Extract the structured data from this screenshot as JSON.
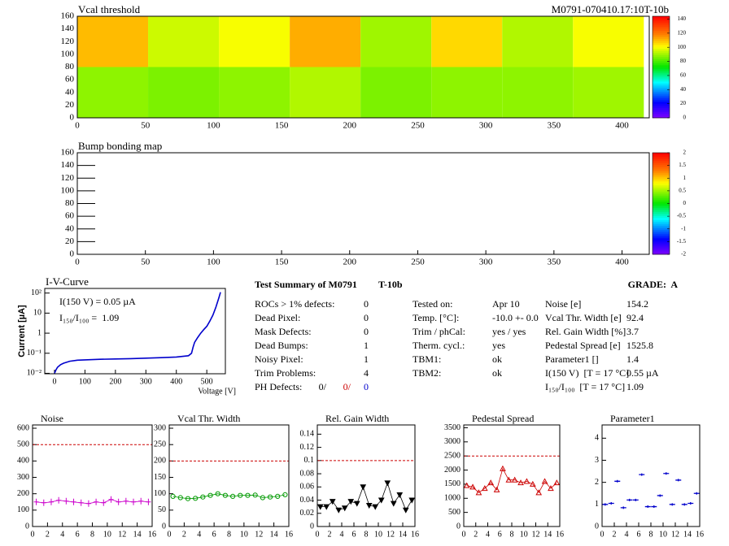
{
  "chart_data": [
    {
      "type": "heatmap",
      "title": "Vcal threshold",
      "subtitle": "M0791-070410.17:10T-10b",
      "xlim": [
        0,
        420
      ],
      "xticks": [
        0,
        50,
        100,
        150,
        200,
        250,
        300,
        350,
        400
      ],
      "ylim": [
        0,
        160
      ],
      "yticks": [
        0,
        20,
        40,
        60,
        80,
        100,
        120,
        140,
        160
      ],
      "x_edges": [
        0,
        52,
        104,
        156,
        208,
        260,
        312,
        364,
        416
      ],
      "y_edges": [
        0,
        80,
        160
      ],
      "z": [
        [
          88,
          86,
          88,
          92,
          86,
          88,
          88,
          90
        ],
        [
          110,
          95,
          100,
          112,
          90,
          106,
          92,
          100
        ]
      ],
      "zlim": [
        0,
        144
      ],
      "zticks": [
        0,
        20,
        40,
        60,
        80,
        100,
        120,
        140
      ]
    },
    {
      "type": "heatmap",
      "title": "Bump bonding map",
      "xlim": [
        0,
        420
      ],
      "xticks": [
        0,
        50,
        100,
        150,
        200,
        250,
        300,
        350,
        400
      ],
      "ylim": [
        0,
        160
      ],
      "yticks": [
        0,
        20,
        40,
        60,
        80,
        100,
        120,
        140,
        160
      ],
      "zlim": [
        -2,
        2
      ],
      "zticks": [
        -2,
        -1.5,
        -1,
        -0.5,
        0,
        0.5,
        1,
        1.5,
        2
      ]
    },
    {
      "type": "line",
      "title": "I-V-Curve",
      "xlabel": "Voltage [V]",
      "ylabel": "Current [µA]",
      "log_y": true,
      "xlim": [
        -32,
        561
      ],
      "xticks": [
        0,
        100,
        200,
        300,
        400,
        500
      ],
      "ylim": [
        0.0095,
        170
      ],
      "yticks": [
        {
          "value": 0.01,
          "label": "10⁻²"
        },
        {
          "value": 0.1,
          "label": "10⁻¹"
        },
        1,
        10,
        {
          "value": 100,
          "label": "10²"
        }
      ],
      "annotations": [
        "I(150 V) = 0.05 µA",
        "I₁₅₀/I₁₀₀ =  1.09"
      ],
      "x": [
        0,
        5,
        10,
        20,
        30,
        50,
        75,
        100,
        150,
        200,
        250,
        300,
        350,
        400,
        440,
        450,
        455,
        460,
        470,
        480,
        490,
        500,
        510,
        520,
        530,
        540,
        545
      ],
      "values": [
        0.01,
        0.015,
        0.02,
        0.027,
        0.032,
        0.04,
        0.045,
        0.047,
        0.05,
        0.052,
        0.054,
        0.057,
        0.06,
        0.065,
        0.075,
        0.1,
        0.2,
        0.35,
        0.6,
        1,
        1.5,
        2.2,
        4,
        8,
        20,
        60,
        110
      ],
      "color": "#0000cc"
    },
    {
      "type": "scatter",
      "title": "Noise",
      "xlim": [
        0,
        16
      ],
      "xticks": [
        0,
        2,
        4,
        6,
        8,
        10,
        12,
        14,
        16
      ],
      "ylim": [
        0,
        620
      ],
      "yticks": [
        0,
        100,
        200,
        300,
        400,
        500,
        600
      ],
      "threshold": 500,
      "threshold_color": "#cc0000",
      "x": [
        0.5,
        1.5,
        2.5,
        3.5,
        4.5,
        5.5,
        6.5,
        7.5,
        8.5,
        9.5,
        10.5,
        11.5,
        12.5,
        13.5,
        14.5,
        15.5
      ],
      "values": [
        150,
        145,
        150,
        160,
        155,
        150,
        145,
        140,
        150,
        145,
        165,
        150,
        155,
        150,
        155,
        150
      ],
      "color": "#cc00cc",
      "marker": "cross",
      "line": true
    },
    {
      "type": "scatter",
      "title": "Vcal Thr. Width",
      "xlim": [
        0,
        16
      ],
      "xticks": [
        0,
        2,
        4,
        6,
        8,
        10,
        12,
        14,
        16
      ],
      "ylim": [
        0,
        310
      ],
      "yticks": [
        0,
        50,
        100,
        150,
        200,
        250,
        300
      ],
      "threshold": 200,
      "threshold_color": "#cc0000",
      "x": [
        0.5,
        1.5,
        2.5,
        3.5,
        4.5,
        5.5,
        6.5,
        7.5,
        8.5,
        9.5,
        10.5,
        11.5,
        12.5,
        13.5,
        14.5,
        15.5
      ],
      "values": [
        92,
        88,
        85,
        86,
        90,
        95,
        100,
        95,
        92,
        95,
        95,
        96,
        88,
        90,
        92,
        97
      ],
      "color": "#009900",
      "marker": "circle",
      "line": true
    },
    {
      "type": "scatter",
      "title": "Rel. Gain Width",
      "xlim": [
        0,
        16
      ],
      "xticks": [
        0,
        2,
        4,
        6,
        8,
        10,
        12,
        14,
        16
      ],
      "ylim": [
        0,
        0.154
      ],
      "yticks": [
        0,
        0.02,
        0.04,
        0.06,
        0.08,
        0.1,
        0.12,
        0.14
      ],
      "threshold": 0.1,
      "threshold_color": "#cc0000",
      "x": [
        0.5,
        1.5,
        2.5,
        3.5,
        4.5,
        5.5,
        6.5,
        7.5,
        8.5,
        9.5,
        10.5,
        11.5,
        12.5,
        13.5,
        14.5,
        15.5
      ],
      "values": [
        0.03,
        0.03,
        0.038,
        0.025,
        0.028,
        0.038,
        0.035,
        0.06,
        0.032,
        0.03,
        0.04,
        0.066,
        0.035,
        0.048,
        0.025,
        0.04
      ],
      "color": "#000000",
      "marker": "triangle-down",
      "line": true
    },
    {
      "type": "scatter",
      "title": "Pedestal Spread",
      "xlim": [
        0,
        16
      ],
      "xticks": [
        0,
        2,
        4,
        6,
        8,
        10,
        12,
        14,
        16
      ],
      "ylim": [
        0,
        3600
      ],
      "yticks": [
        0,
        500,
        1000,
        1500,
        2000,
        2500,
        3000,
        3500
      ],
      "threshold": 2500,
      "threshold_color": "#cc0000",
      "x": [
        0.5,
        1.5,
        2.5,
        3.5,
        4.5,
        5.5,
        6.5,
        7.5,
        8.5,
        9.5,
        10.5,
        11.5,
        12.5,
        13.5,
        14.5,
        15.5
      ],
      "values": [
        1450,
        1400,
        1200,
        1350,
        1550,
        1300,
        2050,
        1650,
        1650,
        1550,
        1600,
        1500,
        1200,
        1600,
        1350,
        1550
      ],
      "color": "#cc0000",
      "marker": "triangle-up",
      "line": true
    },
    {
      "type": "scatter",
      "title": "Parameter1",
      "xlim": [
        0,
        16
      ],
      "xticks": [
        0,
        2,
        4,
        6,
        8,
        10,
        12,
        14,
        16
      ],
      "ylim": [
        0,
        4.6
      ],
      "yticks": [
        0,
        1,
        2,
        3,
        4
      ],
      "x": [
        0.5,
        1.5,
        2.5,
        3.5,
        4.5,
        5.5,
        6.5,
        7.5,
        8.5,
        9.5,
        10.5,
        11.5,
        12.5,
        13.5,
        14.5,
        15.5
      ],
      "values": [
        1.0,
        1.05,
        2.05,
        0.85,
        1.2,
        1.2,
        2.35,
        0.9,
        0.9,
        1.4,
        2.4,
        1.0,
        2.1,
        1.0,
        1.05,
        1.5
      ],
      "color": "#0000cc",
      "marker": "hbar",
      "line": false
    }
  ],
  "summary": {
    "title": "Test Summary of M0791",
    "module": "T-10b",
    "grade": "GRADE:  A",
    "defects": [
      {
        "label": "ROCs > 1% defects:",
        "value": 0
      },
      {
        "label": "Dead Pixel:",
        "value": 0
      },
      {
        "label": "Mask Defects:",
        "value": 0
      },
      {
        "label": "Dead Bumps:",
        "value": 1
      },
      {
        "label": "Noisy Pixel:",
        "value": 1
      },
      {
        "label": "Trim Problems:",
        "value": 4
      }
    ],
    "ph_defects": {
      "label": "PH Defects:",
      "values": [
        "0/",
        "0/",
        "0"
      ],
      "colors": [
        "#000000",
        "#cc0000",
        "#0000cc"
      ]
    },
    "conditions": [
      {
        "label": "Tested on:",
        "value": "Apr 10"
      },
      {
        "label": "Temp. [°C]:",
        "value": "-10.0 +- 0.0"
      },
      {
        "label": "Trim / phCal:",
        "value": "yes / yes"
      },
      {
        "label": "Therm. cycl.:",
        "value": "yes"
      },
      {
        "label": "TBM1:",
        "value": "ok"
      },
      {
        "label": "TBM2:",
        "value": "ok"
      }
    ],
    "results": [
      {
        "label": "Noise [e]",
        "value": 154.2
      },
      {
        "label": "Vcal Thr. Width [e]",
        "value": 92.4
      },
      {
        "label": "Rel. Gain Width [%]",
        "value": 3.7
      },
      {
        "label": "Pedestal Spread [e]",
        "value": 1525.8
      },
      {
        "label": "Parameter1 []",
        "value": 1.4
      },
      {
        "label": "I(150 V)  [T = 17 °C]",
        "value": "0.55 µA"
      },
      {
        "label": "I₁₅₀/I₁₀₀  [T = 17 °C]",
        "value": 1.09
      }
    ]
  }
}
